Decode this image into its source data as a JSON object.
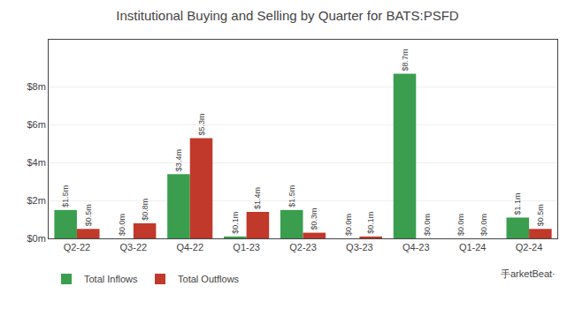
{
  "chart_data": {
    "type": "bar",
    "title": "Institutional Buying and Selling by Quarter for BATS:PSFD",
    "categories": [
      "Q2-22",
      "Q3-22",
      "Q4-22",
      "Q1-23",
      "Q2-23",
      "Q3-23",
      "Q4-23",
      "Q1-24",
      "Q2-24"
    ],
    "series": [
      {
        "name": "Total Inflows",
        "color": "#3a9e4e",
        "values": [
          1.5,
          0.0,
          3.4,
          0.1,
          1.5,
          0.0,
          8.7,
          0.0,
          1.1
        ],
        "value_labels": [
          "$1.5m",
          "$0.0m",
          "$3.4m",
          "$0.1m",
          "$1.5m",
          "$0.0m",
          "$8.7m",
          "$0.0m",
          "$1.1m"
        ]
      },
      {
        "name": "Total Outflows",
        "color": "#c0392b",
        "values": [
          0.5,
          0.8,
          5.3,
          1.4,
          0.3,
          0.1,
          0.0,
          0.0,
          0.5
        ],
        "value_labels": [
          "$0.5m",
          "$0.8m",
          "$5.3m",
          "$1.4m",
          "$0.3m",
          "$0.1m",
          "$0.0m",
          "$0.0m",
          "$0.5m"
        ]
      }
    ],
    "ylim": [
      0,
      10.5
    ],
    "yticks": [
      {
        "value": 0,
        "label": "$0m"
      },
      {
        "value": 2,
        "label": "$2m"
      },
      {
        "value": 4,
        "label": "$4m"
      },
      {
        "value": 6,
        "label": "$6m"
      },
      {
        "value": 8,
        "label": "$8m"
      }
    ],
    "grid": true,
    "legend": "bottom",
    "data_labels": true,
    "annotations": [
      "⼿arketBeat·"
    ]
  }
}
